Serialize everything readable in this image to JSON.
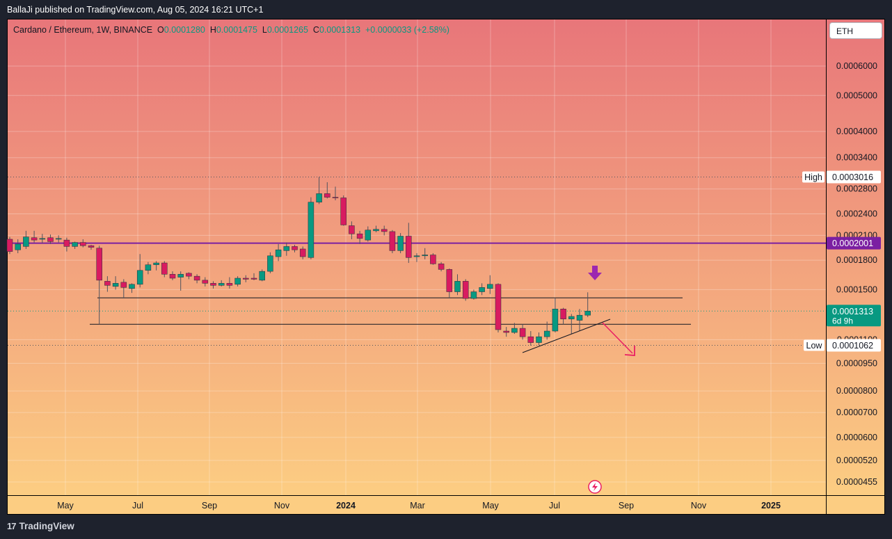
{
  "header": {
    "published_by": "BallaJi published on TradingView.com, Aug 05, 2024 16:21 UTC+1"
  },
  "legend": {
    "symbol": "Cardano / Ethereum, 1W, BINANCE",
    "o_label": "O",
    "o_value": "0.0001280",
    "h_label": "H",
    "h_value": "0.0001475",
    "l_label": "L",
    "l_value": "0.0001265",
    "c_label": "C",
    "c_value": "0.0001313",
    "change": "+0.0000033 (+2.58%)"
  },
  "symbol_button": "ETH",
  "footer": {
    "brand": "TradingView",
    "logo": "17"
  },
  "colors": {
    "bg_top": "#e8767a",
    "bg_bottom": "#fccd82",
    "up": "#089981",
    "down": "#d81b60",
    "wick": "#50535e",
    "resistance": "#7b1fa2",
    "arrow_purple": "#9c27b0",
    "arrow_pink": "#e91e63"
  },
  "chart_data": {
    "type": "candlestick",
    "title": "Cardano / Ethereum, 1W, BINANCE",
    "scale": "log",
    "ylim": [
      4.25e-05,
      0.00072
    ],
    "x_ticks": [
      "May",
      "Jul",
      "Sep",
      "Nov",
      "2024",
      "Mar",
      "May",
      "Jul",
      "Sep",
      "Nov",
      "2025"
    ],
    "y_ticks": [
      "0.0006000",
      "0.0005000",
      "0.0004000",
      "0.0003400",
      "0.0002800",
      "0.0002400",
      "0.0002100",
      "0.0001800",
      "0.0001500",
      "0.0001100",
      "0.0000950",
      "0.0000800",
      "0.0000700",
      "0.0000600",
      "0.0000520",
      "0.0000455"
    ],
    "price_labels": {
      "high_label": "High",
      "high_value": "0.0003016",
      "resistance_value": "0.0002001",
      "last_value": "0.0001313",
      "countdown": "6d 9h",
      "low_label": "Low",
      "low_value": "0.0001062"
    },
    "levels": {
      "resistance": 0.0002001,
      "support_upper": 0.0001425,
      "support_lower": 0.000121,
      "high": 0.0003016,
      "low": 0.0001062,
      "last": 0.0001313
    },
    "candles": [
      {
        "o": 0.000205,
        "h": 0.000208,
        "l": 0.000187,
        "c": 0.00019
      },
      {
        "o": 0.000192,
        "h": 0.000205,
        "l": 0.000188,
        "c": 0.000199
      },
      {
        "o": 0.000196,
        "h": 0.000216,
        "l": 0.000193,
        "c": 0.000208
      },
      {
        "o": 0.000207,
        "h": 0.000216,
        "l": 0.000201,
        "c": 0.000204
      },
      {
        "o": 0.000205,
        "h": 0.000212,
        "l": 0.0002,
        "c": 0.000206
      },
      {
        "o": 0.000207,
        "h": 0.000211,
        "l": 0.000199,
        "c": 0.000202
      },
      {
        "o": 0.000205,
        "h": 0.00021,
        "l": 0.000201,
        "c": 0.000206
      },
      {
        "o": 0.000204,
        "h": 0.000207,
        "l": 0.00019,
        "c": 0.000196
      },
      {
        "o": 0.000196,
        "h": 0.000202,
        "l": 0.000193,
        "c": 0.000201
      },
      {
        "o": 0.000201,
        "h": 0.000205,
        "l": 0.000195,
        "c": 0.000197
      },
      {
        "o": 0.000197,
        "h": 0.000198,
        "l": 0.000192,
        "c": 0.000195
      },
      {
        "o": 0.000194,
        "h": 0.000197,
        "l": 0.000121,
        "c": 0.000159
      },
      {
        "o": 0.000158,
        "h": 0.000163,
        "l": 0.000148,
        "c": 0.000154
      },
      {
        "o": 0.000153,
        "h": 0.000163,
        "l": 0.00015,
        "c": 0.000156
      },
      {
        "o": 0.000157,
        "h": 0.00016,
        "l": 0.000142,
        "c": 0.000152
      },
      {
        "o": 0.000151,
        "h": 0.000156,
        "l": 0.000147,
        "c": 0.000155
      },
      {
        "o": 0.000155,
        "h": 0.000187,
        "l": 0.000152,
        "c": 0.000169
      },
      {
        "o": 0.000169,
        "h": 0.000178,
        "l": 0.000165,
        "c": 0.000175
      },
      {
        "o": 0.000175,
        "h": 0.000179,
        "l": 0.000169,
        "c": 0.000177
      },
      {
        "o": 0.000177,
        "h": 0.000179,
        "l": 0.000162,
        "c": 0.000165
      },
      {
        "o": 0.000165,
        "h": 0.000168,
        "l": 0.000159,
        "c": 0.000161
      },
      {
        "o": 0.000162,
        "h": 0.000168,
        "l": 0.000149,
        "c": 0.000165
      },
      {
        "o": 0.000166,
        "h": 0.000167,
        "l": 0.00016,
        "c": 0.000163
      },
      {
        "o": 0.000163,
        "h": 0.000165,
        "l": 0.000156,
        "c": 0.000159
      },
      {
        "o": 0.000159,
        "h": 0.000162,
        "l": 0.000153,
        "c": 0.000156
      },
      {
        "o": 0.000156,
        "h": 0.000158,
        "l": 0.000151,
        "c": 0.000154
      },
      {
        "o": 0.000154,
        "h": 0.000159,
        "l": 0.000153,
        "c": 0.000156
      },
      {
        "o": 0.000156,
        "h": 0.000162,
        "l": 0.000151,
        "c": 0.000154
      },
      {
        "o": 0.000155,
        "h": 0.000163,
        "l": 0.000153,
        "c": 0.000161
      },
      {
        "o": 0.000161,
        "h": 0.000164,
        "l": 0.000157,
        "c": 0.00016
      },
      {
        "o": 0.000161,
        "h": 0.000166,
        "l": 0.000159,
        "c": 0.00016
      },
      {
        "o": 0.000159,
        "h": 0.00017,
        "l": 0.000158,
        "c": 0.000168
      },
      {
        "o": 0.000168,
        "h": 0.000189,
        "l": 0.000166,
        "c": 0.000185
      },
      {
        "o": 0.000184,
        "h": 0.000199,
        "l": 0.000179,
        "c": 0.000192
      },
      {
        "o": 0.000191,
        "h": 0.000201,
        "l": 0.000185,
        "c": 0.000196
      },
      {
        "o": 0.000196,
        "h": 0.000198,
        "l": 0.000189,
        "c": 0.000192
      },
      {
        "o": 0.000193,
        "h": 0.000196,
        "l": 0.000181,
        "c": 0.000184
      },
      {
        "o": 0.000183,
        "h": 0.000266,
        "l": 0.000181,
        "c": 0.000258
      },
      {
        "o": 0.000258,
        "h": 0.0003016,
        "l": 0.000255,
        "c": 0.000272
      },
      {
        "o": 0.000272,
        "h": 0.000292,
        "l": 0.000264,
        "c": 0.000266
      },
      {
        "o": 0.000266,
        "h": 0.000284,
        "l": 0.000261,
        "c": 0.000265
      },
      {
        "o": 0.000265,
        "h": 0.000269,
        "l": 0.000223,
        "c": 0.000224
      },
      {
        "o": 0.000223,
        "h": 0.000229,
        "l": 0.000205,
        "c": 0.000212
      },
      {
        "o": 0.000212,
        "h": 0.000216,
        "l": 0.000199,
        "c": 0.000206
      },
      {
        "o": 0.000204,
        "h": 0.000222,
        "l": 0.000202,
        "c": 0.000217
      },
      {
        "o": 0.000216,
        "h": 0.000223,
        "l": 0.000214,
        "c": 0.000218
      },
      {
        "o": 0.000218,
        "h": 0.000223,
        "l": 0.00021,
        "c": 0.000215
      },
      {
        "o": 0.000215,
        "h": 0.000217,
        "l": 0.000188,
        "c": 0.000191
      },
      {
        "o": 0.000191,
        "h": 0.000213,
        "l": 0.000188,
        "c": 0.000209
      },
      {
        "o": 0.000209,
        "h": 0.000227,
        "l": 0.000177,
        "c": 0.000183
      },
      {
        "o": 0.000184,
        "h": 0.000188,
        "l": 0.000178,
        "c": 0.000185
      },
      {
        "o": 0.000185,
        "h": 0.000194,
        "l": 0.000181,
        "c": 0.000186
      },
      {
        "o": 0.000186,
        "h": 0.000188,
        "l": 0.000175,
        "c": 0.000176
      },
      {
        "o": 0.000176,
        "h": 0.000178,
        "l": 0.000168,
        "c": 0.00017
      },
      {
        "o": 0.00017,
        "h": 0.000171,
        "l": 0.000142,
        "c": 0.000148
      },
      {
        "o": 0.000148,
        "h": 0.000165,
        "l": 0.000145,
        "c": 0.000158
      },
      {
        "o": 0.000158,
        "h": 0.00016,
        "l": 0.00014,
        "c": 0.000142
      },
      {
        "o": 0.000142,
        "h": 0.00015,
        "l": 0.000141,
        "c": 0.000148
      },
      {
        "o": 0.000148,
        "h": 0.000156,
        "l": 0.000145,
        "c": 0.000152
      },
      {
        "o": 0.000151,
        "h": 0.000164,
        "l": 0.000146,
        "c": 0.000155
      },
      {
        "o": 0.000155,
        "h": 0.000156,
        "l": 0.000115,
        "c": 0.000117
      },
      {
        "o": 0.000116,
        "h": 0.000119,
        "l": 0.000112,
        "c": 0.000115
      },
      {
        "o": 0.000115,
        "h": 0.000122,
        "l": 0.000114,
        "c": 0.000118
      },
      {
        "o": 0.000118,
        "h": 0.000121,
        "l": 0.00011,
        "c": 0.000112
      },
      {
        "o": 0.000112,
        "h": 0.000116,
        "l": 0.000106,
        "c": 0.000108
      },
      {
        "o": 0.000108,
        "h": 0.000115,
        "l": 0.0001062,
        "c": 0.000112
      },
      {
        "o": 0.000112,
        "h": 0.000123,
        "l": 0.00011,
        "c": 0.000116
      },
      {
        "o": 0.000116,
        "h": 0.000142,
        "l": 0.000115,
        "c": 0.000133
      },
      {
        "o": 0.000133,
        "h": 0.000134,
        "l": 0.000121,
        "c": 0.000125
      },
      {
        "o": 0.000125,
        "h": 0.000129,
        "l": 0.000114,
        "c": 0.000127
      },
      {
        "o": 0.000124,
        "h": 0.000133,
        "l": 0.000116,
        "c": 0.000128
      },
      {
        "o": 0.000128,
        "h": 0.0001475,
        "l": 0.0001265,
        "c": 0.0001313
      }
    ]
  }
}
